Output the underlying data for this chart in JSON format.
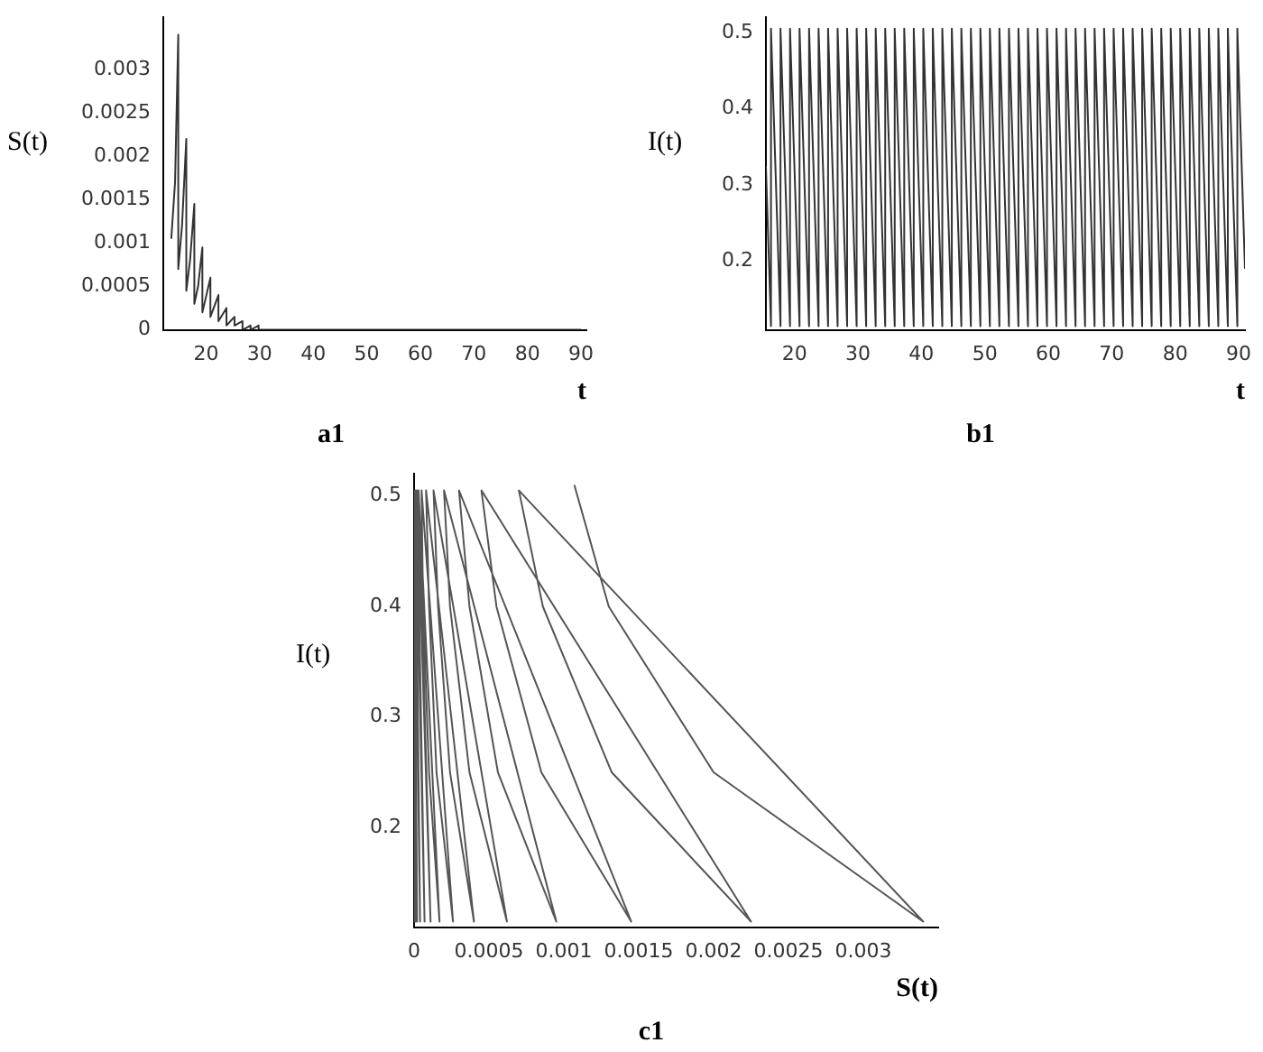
{
  "chart_data": [
    {
      "type": "line",
      "title": "a1",
      "xlabel": "t",
      "ylabel": "S(t)",
      "color": "#333333",
      "grid": false,
      "x": [
        13.5,
        14.2,
        14.8,
        14.8,
        15.5,
        16.3,
        16.3,
        17,
        17.8,
        17.8,
        18.5,
        19.3,
        19.3,
        20.8,
        20.8,
        22.3,
        22.3,
        23.8,
        23.8,
        25.3,
        25.3,
        26.8,
        26.8,
        28.3,
        28.3,
        29.8,
        29.8,
        31.3,
        32.8,
        35,
        40,
        50,
        60,
        70,
        80,
        90
      ],
      "values": [
        0.00105,
        0.0017,
        0.0034,
        0.0007,
        0.0012,
        0.0022,
        0.00045,
        0.0008,
        0.00145,
        0.0003,
        0.0005,
        0.00095,
        0.0002,
        0.0006,
        0.00015,
        0.0004,
        0.0001,
        0.00025,
        5e-05,
        0.00015,
        5e-05,
        0.0001,
        0,
        5e-05,
        0,
        5e-05,
        0,
        0,
        0,
        0,
        0,
        0,
        0,
        0,
        0,
        0
      ],
      "xlim": [
        12,
        91
      ],
      "ylim": [
        0,
        0.0036
      ],
      "xticks": [
        20,
        30,
        40,
        50,
        60,
        70,
        80,
        90
      ],
      "yticks": [
        0,
        0.0005,
        0.001,
        0.0015,
        0.002,
        0.0025,
        0.003
      ]
    },
    {
      "type": "line",
      "title": "b1",
      "xlabel": "t",
      "ylabel": "I(t)",
      "color": "#333333",
      "grid": false,
      "x": [
        15.5,
        16.3,
        16.3,
        17.8,
        17.8,
        19.3,
        19.3,
        20.8,
        20.8,
        22.3,
        22.3,
        23.8,
        23.8,
        25.3,
        25.3,
        26.8,
        26.8,
        28.3,
        28.3,
        29.8,
        29.8,
        31.3,
        31.3,
        32.8,
        32.8,
        34.3,
        34.3,
        35.8,
        35.8,
        37.3,
        37.3,
        38.8,
        38.8,
        40.3,
        40.3,
        41.8,
        41.8,
        43.3,
        43.3,
        44.8,
        44.8,
        46.3,
        46.3,
        47.8,
        47.8,
        49.3,
        49.3,
        50.8,
        50.8,
        52.3,
        52.3,
        53.8,
        53.8,
        55.3,
        55.3,
        56.8,
        56.8,
        58.3,
        58.3,
        59.8,
        59.8,
        61.3,
        61.3,
        62.8,
        62.8,
        64.3,
        64.3,
        65.8,
        65.8,
        67.3,
        67.3,
        68.8,
        68.8,
        70.3,
        70.3,
        71.8,
        71.8,
        73.3,
        73.3,
        74.8,
        74.8,
        76.3,
        76.3,
        77.8,
        77.8,
        79.3,
        79.3,
        80.8,
        80.8,
        82.3,
        82.3,
        83.8,
        83.8,
        85.3,
        85.3,
        86.8,
        86.8,
        88.3,
        88.3,
        89.8,
        89.8,
        91
      ],
      "values": [
        0.325,
        0.115,
        0.505,
        0.115,
        0.505,
        0.115,
        0.505,
        0.115,
        0.505,
        0.115,
        0.505,
        0.115,
        0.505,
        0.115,
        0.505,
        0.115,
        0.505,
        0.115,
        0.505,
        0.115,
        0.505,
        0.115,
        0.505,
        0.115,
        0.505,
        0.115,
        0.505,
        0.115,
        0.505,
        0.115,
        0.505,
        0.115,
        0.505,
        0.115,
        0.505,
        0.115,
        0.505,
        0.115,
        0.505,
        0.115,
        0.505,
        0.115,
        0.505,
        0.115,
        0.505,
        0.115,
        0.505,
        0.115,
        0.505,
        0.115,
        0.505,
        0.115,
        0.505,
        0.115,
        0.505,
        0.115,
        0.505,
        0.115,
        0.505,
        0.115,
        0.505,
        0.115,
        0.505,
        0.115,
        0.505,
        0.115,
        0.505,
        0.115,
        0.505,
        0.115,
        0.505,
        0.115,
        0.505,
        0.115,
        0.505,
        0.115,
        0.505,
        0.115,
        0.505,
        0.115,
        0.505,
        0.115,
        0.505,
        0.115,
        0.505,
        0.115,
        0.505,
        0.115,
        0.505,
        0.115,
        0.505,
        0.115,
        0.505,
        0.115,
        0.505,
        0.115,
        0.505,
        0.115,
        0.505,
        0.115,
        0.505,
        0.19
      ],
      "xlim": [
        15.5,
        91
      ],
      "ylim": [
        0.11,
        0.52
      ],
      "xticks": [
        20,
        30,
        40,
        50,
        60,
        70,
        80,
        90
      ],
      "yticks": [
        0.2,
        0.3,
        0.4,
        0.5
      ]
    },
    {
      "type": "line",
      "title": "c1",
      "xlabel": "S(t)",
      "ylabel": "I(t)",
      "color": "#555555",
      "grid": false,
      "x": [
        0.00107,
        0.0013,
        0.002,
        0.0034,
        0.0007,
        0.00086,
        0.00132,
        0.00225,
        0.00045,
        0.00055,
        0.00085,
        0.00145,
        0.0003,
        0.00037,
        0.00056,
        0.00095,
        0.0002,
        0.00024,
        0.00037,
        0.00062,
        0.00013,
        0.00016,
        0.00024,
        0.0004,
        8e-05,
        0.0001,
        0.00015,
        0.00026,
        5e-05,
        6e-05,
        0.0001,
        0.00017,
        3e-05,
        0.00011,
        2e-05,
        7e-05,
        1e-05,
        4e-05,
        0,
        2e-05,
        0,
        1e-05,
        0,
        0
      ],
      "values": [
        0.51,
        0.4,
        0.25,
        0.115,
        0.505,
        0.4,
        0.25,
        0.115,
        0.505,
        0.4,
        0.25,
        0.115,
        0.505,
        0.4,
        0.25,
        0.115,
        0.505,
        0.4,
        0.25,
        0.115,
        0.505,
        0.4,
        0.25,
        0.115,
        0.505,
        0.4,
        0.25,
        0.115,
        0.505,
        0.4,
        0.25,
        0.115,
        0.505,
        0.115,
        0.505,
        0.115,
        0.505,
        0.115,
        0.505,
        0.115,
        0.505,
        0.115,
        0.505,
        0.115
      ],
      "xlim": [
        0,
        0.0035
      ],
      "ylim": [
        0.11,
        0.52
      ],
      "xticks": [
        0,
        0.0005,
        0.001,
        0.0015,
        0.002,
        0.0025,
        0.003
      ],
      "yticks": [
        0.2,
        0.3,
        0.4,
        0.5
      ]
    }
  ]
}
